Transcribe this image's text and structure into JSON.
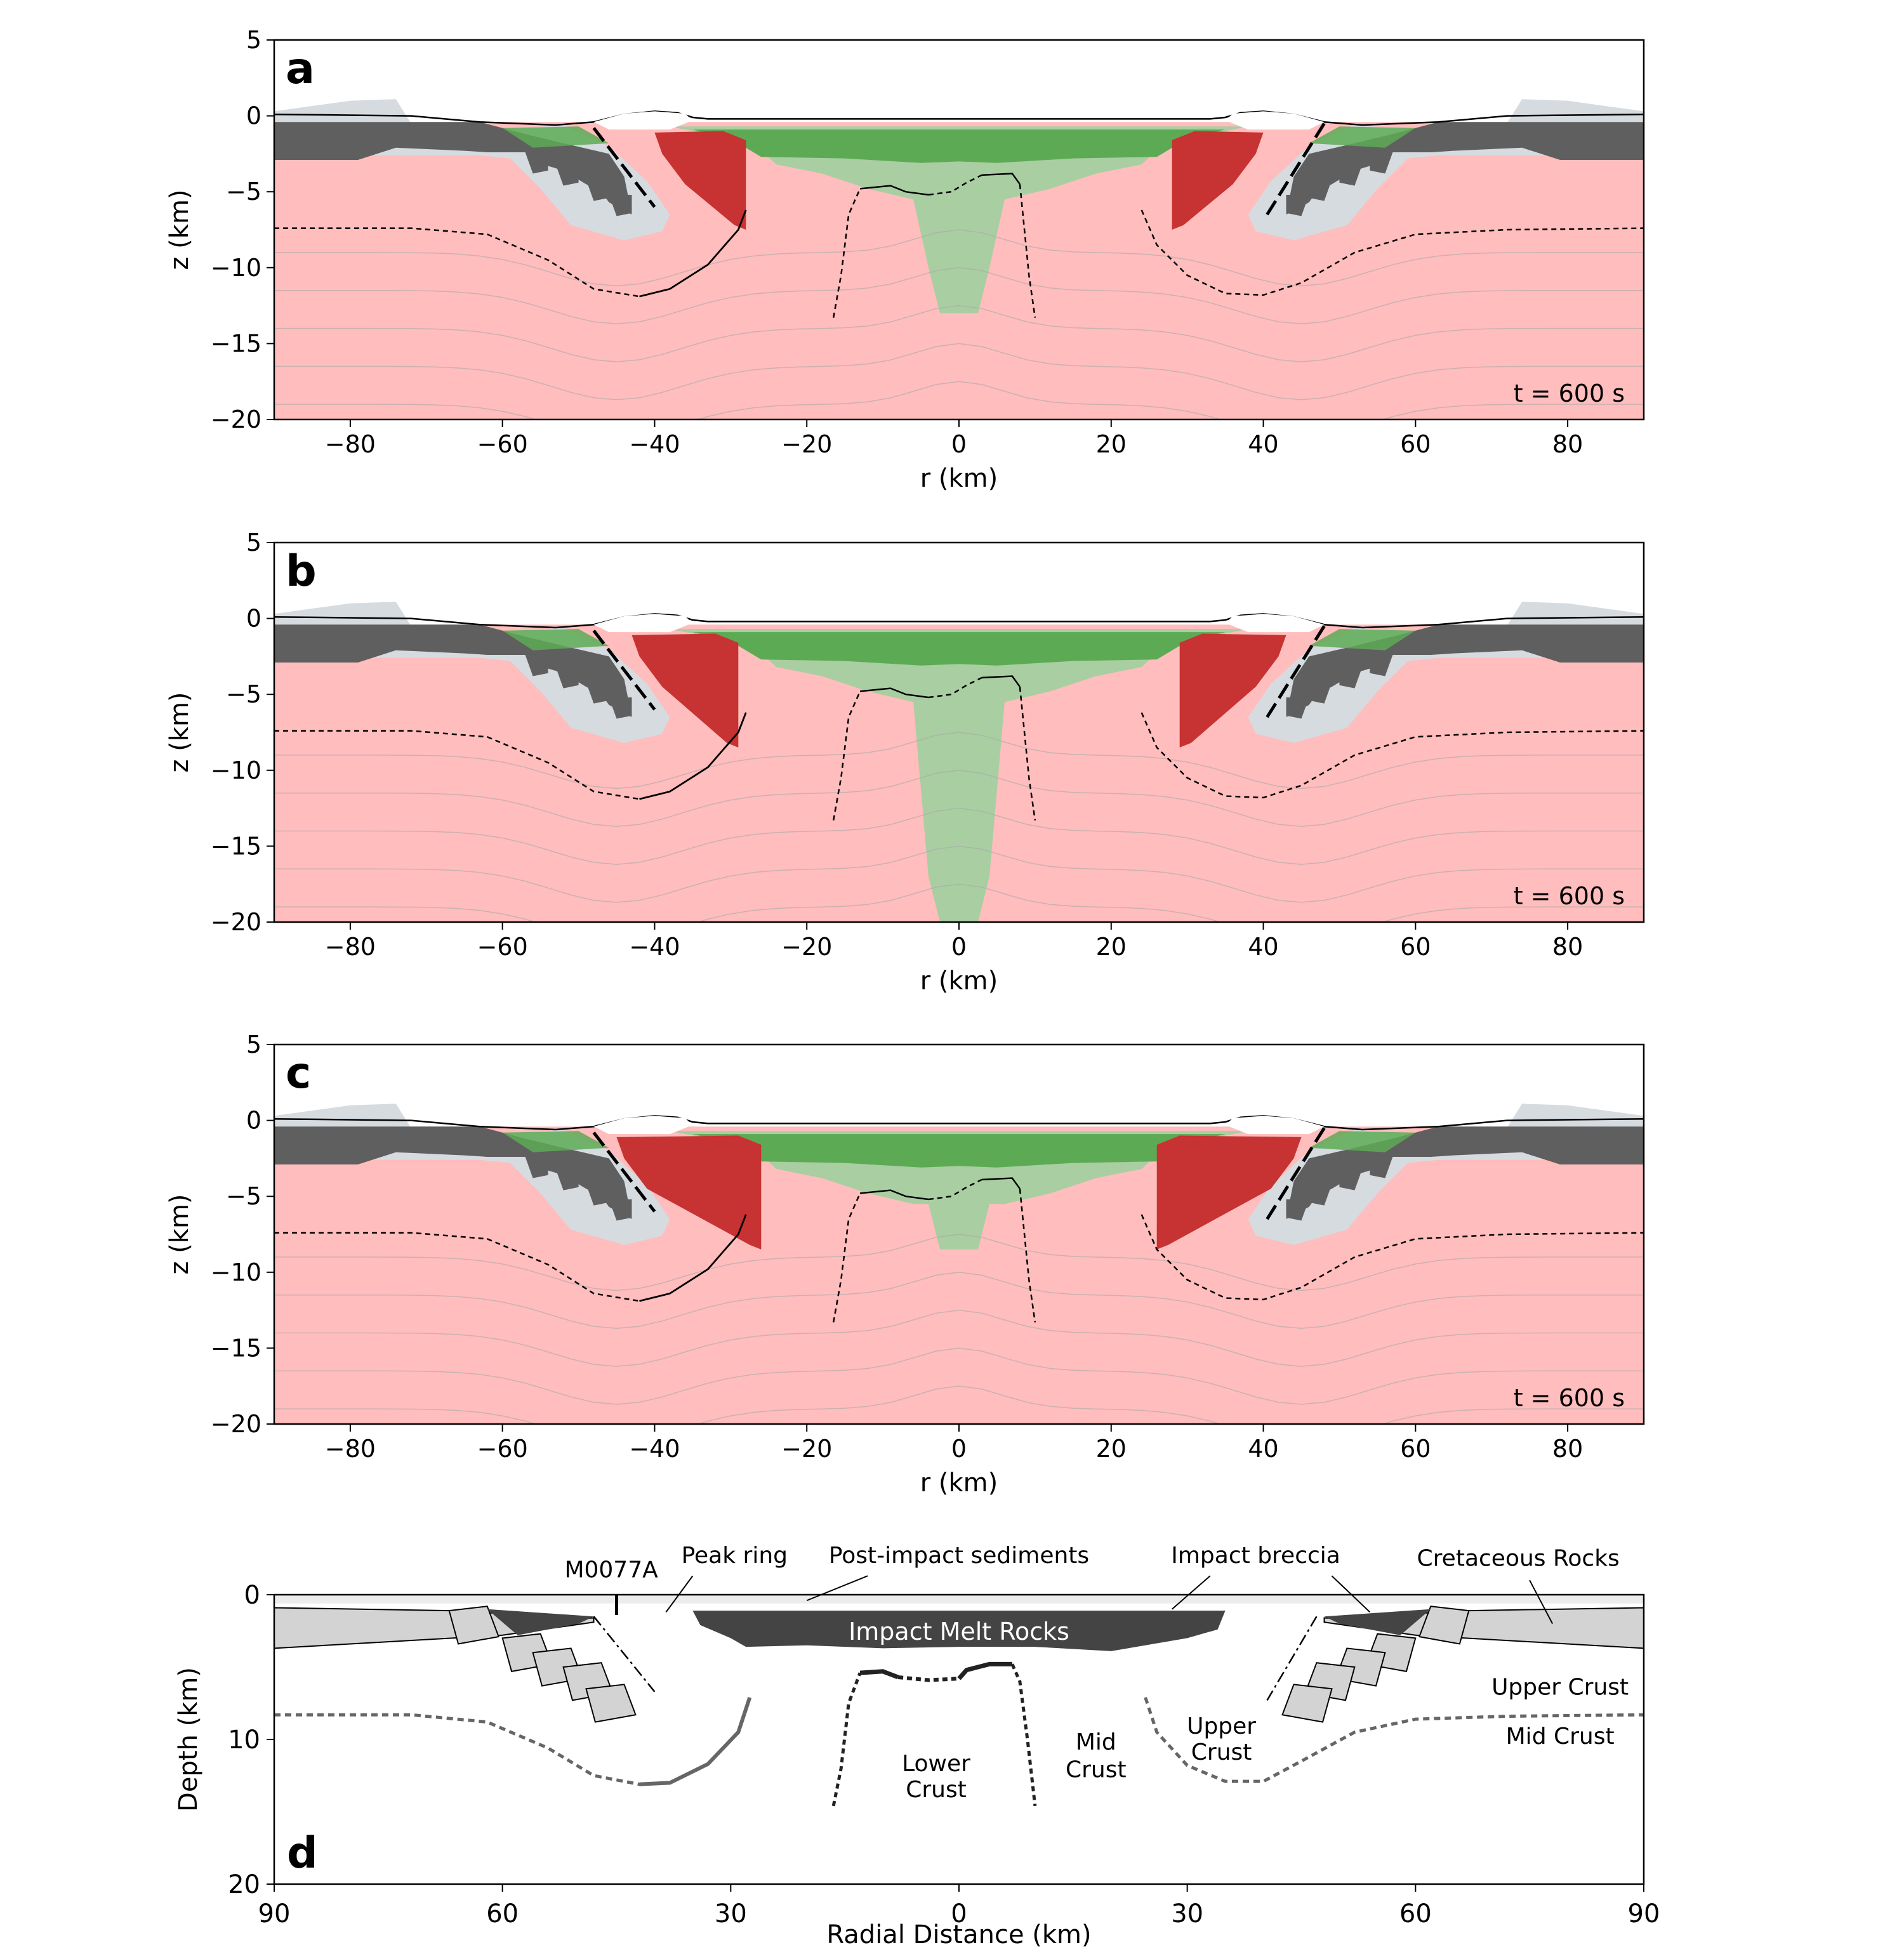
{
  "chart_data": [
    {
      "type": "area",
      "panel_label": "a",
      "time_label": "t =  600 s",
      "xlabel": "r (km)",
      "ylabel": "z (km)",
      "xlim": [
        -90,
        90
      ],
      "ylim": [
        -20,
        5
      ],
      "xticks": [
        -80,
        -60,
        -40,
        -20,
        0,
        20,
        40,
        60,
        80
      ],
      "yticks": [
        5,
        0,
        -5,
        -10,
        -15,
        -20
      ],
      "central_green_depth_km": -13,
      "red_outer_r_km": 40,
      "red_inner_r_km": 28,
      "red_bottom_z_km": -7.5
    },
    {
      "type": "area",
      "panel_label": "b",
      "time_label": "t =  600 s",
      "xlabel": "r (km)",
      "ylabel": "z (km)",
      "xlim": [
        -90,
        90
      ],
      "ylim": [
        -20,
        5
      ],
      "xticks": [
        -80,
        -60,
        -40,
        -20,
        0,
        20,
        40,
        60,
        80
      ],
      "yticks": [
        5,
        0,
        -5,
        -10,
        -15,
        -20
      ],
      "central_green_depth_km": -20,
      "red_outer_r_km": 43,
      "red_inner_r_km": 29,
      "red_bottom_z_km": -8.5
    },
    {
      "type": "area",
      "panel_label": "c",
      "time_label": "t =  600 s",
      "xlabel": "r (km)",
      "ylabel": "z (km)",
      "xlim": [
        -90,
        90
      ],
      "ylim": [
        -20,
        5
      ],
      "xticks": [
        -80,
        -60,
        -40,
        -20,
        0,
        20,
        40,
        60,
        80
      ],
      "yticks": [
        5,
        0,
        -5,
        -10,
        -15,
        -20
      ],
      "central_green_depth_km": -8.5,
      "red_outer_r_km": 45,
      "red_inner_r_km": 26,
      "red_bottom_z_km": -8.5
    },
    {
      "type": "diagram",
      "panel_label": "d",
      "xlabel": "Radial Distance (km)",
      "ylabel": "Depth (km)",
      "xlim": [
        -90,
        90
      ],
      "ylim": [
        20,
        0
      ],
      "xtick_values": [
        -90,
        -60,
        -30,
        0,
        30,
        60,
        90
      ],
      "xtick_labels": [
        "90",
        "60",
        "30",
        "0",
        "30",
        "60",
        "90"
      ],
      "yticks": [
        0,
        10,
        20
      ],
      "annotations": {
        "m0077a": "M0077A",
        "peak_ring": "Peak ring",
        "post_impact": "Post-impact sediments",
        "impact_breccia": "Impact breccia",
        "cretaceous": "Cretaceous Rocks",
        "melt_rocks": "Impact Melt Rocks",
        "upper_crust_right": "Upper Crust",
        "mid_crust_right": "Mid Crust",
        "upper_crust_inner_1": "Upper",
        "upper_crust_inner_2": "Crust",
        "mid_crust_inner_1": "Mid",
        "mid_crust_inner_2": "Crust",
        "lower_crust_1": "Lower",
        "lower_crust_2": "Crust"
      }
    }
  ],
  "colors": {
    "basement": "#ffbdbd",
    "sediment_dark": "#5f5f5f",
    "breccia_light": "#d6dbe0",
    "melt_green": "#5daa55",
    "green_light": "#a9cea2",
    "melt_red": "#c73232",
    "diagram_gray": "#d3d3d3",
    "diagram_dark": "#444444"
  }
}
